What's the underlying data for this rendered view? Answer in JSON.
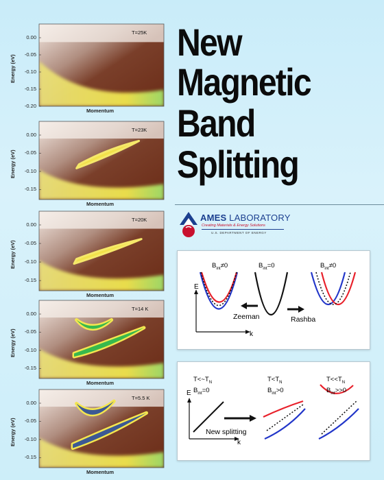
{
  "title": {
    "lines": [
      "New",
      "Magnetic",
      "Band",
      "Splitting"
    ]
  },
  "logo": {
    "name_bold": "AMES",
    "name_rest": " LABORATORY",
    "tagline": "Creating Materials & Energy Solutions",
    "department": "U.S. DEPARTMENT OF ENERGY"
  },
  "arpes_panels": [
    {
      "temperature": "T=25K",
      "yticks": [
        "0.00",
        "-0.05",
        "-0.10",
        "-0.15",
        "-0.20"
      ],
      "ylabel": "Energy (eV)",
      "xlabel": "Momentum"
    },
    {
      "temperature": "T=23K",
      "yticks": [
        "0.00",
        "-0.05",
        "-0.10",
        "-0.15"
      ],
      "ylabel": "Energy (eV)",
      "xlabel": "Momentum"
    },
    {
      "temperature": "T=20K",
      "yticks": [
        "0.00",
        "-0.05",
        "-0.10",
        "-0.15"
      ],
      "ylabel": "Energy (eV)",
      "xlabel": "Momentum"
    },
    {
      "temperature": "T=14 K",
      "yticks": [
        "0.00",
        "-0.05",
        "-0.10",
        "-0.15"
      ],
      "ylabel": "Energy (eV)",
      "xlabel": "Momentum"
    },
    {
      "temperature": "T=5.5 K",
      "yticks": [
        "0.00",
        "-0.05",
        "-0.10",
        "-0.15"
      ],
      "ylabel": "Energy (eV)",
      "xlabel": "Momentum"
    }
  ],
  "diagram1": {
    "label_left": "B",
    "label_left_sub": "int",
    "label_left_rel": "≠0",
    "label_mid": "B",
    "label_mid_sub": "int",
    "label_mid_rel": "=0",
    "label_right": "B",
    "label_right_sub": "int",
    "label_right_rel": "≠0",
    "axis_e": "E",
    "axis_k": "k",
    "zeeman": "Zeeman",
    "rashba": "Rashba"
  },
  "diagram2": {
    "c1_line1": "T<~T",
    "c1_line1_sub": "N",
    "c1_line2": "B",
    "c1_line2_sub": "int",
    "c1_line2_rel": "=0",
    "c2_line1": "T<T",
    "c2_line1_sub": "N",
    "c2_line2": "B",
    "c2_line2_sub": "int",
    "c2_line2_rel": ">0",
    "c3_line1": "T<<T",
    "c3_line1_sub": "N",
    "c3_line2": "B",
    "c3_line2_sub": "int",
    "c3_line2_rel": ">>0",
    "axis_e": "E",
    "axis_k": "k",
    "arrow_label": "New splitting"
  },
  "colors": {
    "background": "#cdeef9",
    "red": "#e8202a",
    "blue": "#2236c9",
    "logo_red": "#c8102e",
    "logo_blue": "#1b3f8f"
  }
}
